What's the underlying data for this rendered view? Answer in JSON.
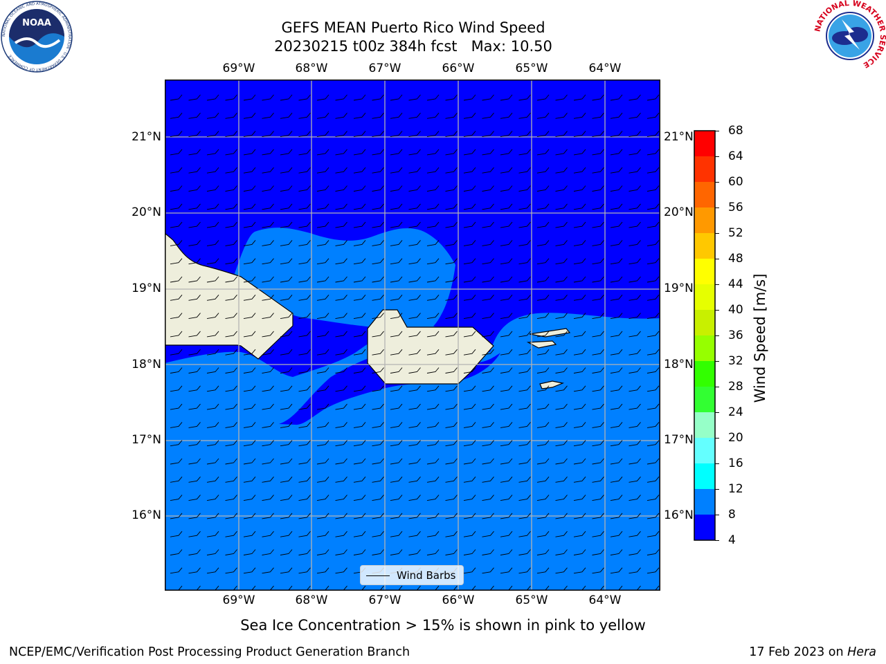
{
  "title": {
    "line1": "GEFS MEAN Puerto Rico Wind Speed",
    "line2": "20230215 t00z 384h fcst   Max: 10.50"
  },
  "map": {
    "lon_labels": [
      "69°W",
      "68°W",
      "67°W",
      "66°W",
      "65°W",
      "64°W"
    ],
    "lat_labels": [
      "21°N",
      "20°N",
      "19°N",
      "18°N",
      "17°N",
      "16°N"
    ],
    "legend_label": "Wind Barbs",
    "icons": [
      "noaa-logo",
      "nws-logo"
    ]
  },
  "colorbar": {
    "label": "Wind Speed [m/s]",
    "ticks": [
      "68",
      "64",
      "60",
      "56",
      "52",
      "48",
      "44",
      "40",
      "36",
      "32",
      "28",
      "24",
      "20",
      "16",
      "12",
      "8",
      "4"
    ],
    "colors": [
      "#ff0000",
      "#ff3300",
      "#ff6600",
      "#ff9900",
      "#ffc800",
      "#ffff00",
      "#e6ff00",
      "#c8f000",
      "#96ff00",
      "#32ff00",
      "#32ff32",
      "#96ffc8",
      "#64ffff",
      "#00ffff",
      "#0080ff",
      "#0000ff"
    ]
  },
  "logos": {
    "nws_ring_text": "NATIONAL WEATHER SERVICE",
    "noaa_text": "NOAA",
    "noaa_ring_text": "NATIONAL OCEANIC AND ATMOSPHERIC ADMINISTRATION · U.S. DEPARTMENT OF COMMERCE"
  },
  "colors": {
    "ocean_low": "#0000ff",
    "ocean_mid": "#0080ff",
    "land": "#eeeedc"
  },
  "caption": "Sea Ice Concentration > 15% is shown in pink to yellow",
  "footer": {
    "left": "NCEP/EMC/Verification Post Processing Product Generation Branch",
    "date": "17 Feb 2023 on ",
    "machine": "Hera"
  }
}
